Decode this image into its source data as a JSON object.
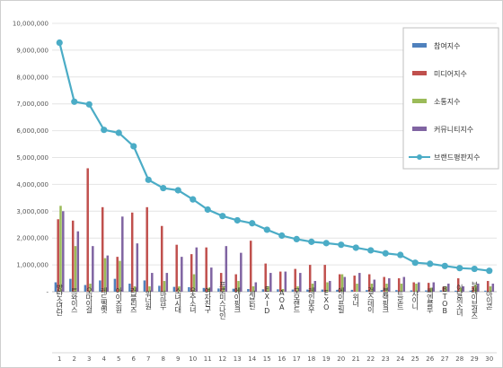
{
  "chart_data": {
    "type": "bar",
    "title": "",
    "xlabel": "",
    "ylabel": "",
    "ylim": [
      0,
      10000000
    ],
    "grid": true,
    "legend_position": "top-right",
    "y_ticks": [
      "-",
      "1,000,000",
      "2,000,000",
      "3,000,000",
      "4,000,000",
      "5,000,000",
      "6,000,000",
      "7,000,000",
      "8,000,000",
      "9,000,000",
      "10,000,000"
    ],
    "categories": [
      "방탄소년단",
      "트와이스",
      "오마이걸",
      "레드벨벳",
      "아이즈원",
      "러블리즈",
      "워너원",
      "마마무",
      "소녀시대",
      "우주소녀",
      "여자친구",
      "프로미스나인",
      "에이핑크",
      "세븐틴",
      "EXID",
      "AOA",
      "모모랜드",
      "레인보우",
      "EXO",
      "에이프릴",
      "위너",
      "걸스데이",
      "블랙핑크",
      "트로트",
      "샤이니",
      "씨엔블루",
      "BTOB",
      "이달의소녀",
      "브레이브걸스",
      "아이콘"
    ],
    "ranks": [
      "1",
      "2",
      "3",
      "4",
      "5",
      "6",
      "7",
      "8",
      "9",
      "10",
      "11",
      "12",
      "13",
      "14",
      "15",
      "16",
      "17",
      "18",
      "19",
      "20",
      "21",
      "22",
      "23",
      "24",
      "25",
      "26",
      "27",
      "28",
      "29",
      "30"
    ],
    "series": [
      {
        "name": "참여지수",
        "color": "#4f81bd",
        "type": "bar",
        "values": [
          350000,
          480000,
          250000,
          420000,
          480000,
          300000,
          420000,
          220000,
          180000,
          170000,
          140000,
          120000,
          110000,
          100000,
          90000,
          90000,
          80000,
          80000,
          80000,
          70000,
          70000,
          60000,
          60000,
          60000,
          50000,
          50000,
          50000,
          40000,
          40000,
          40000
        ]
      },
      {
        "name": "미디어지수",
        "color": "#c0504d",
        "type": "bar",
        "values": [
          2700000,
          2650000,
          4600000,
          3150000,
          1300000,
          2950000,
          3150000,
          2450000,
          1750000,
          1400000,
          1650000,
          700000,
          650000,
          1900000,
          1050000,
          750000,
          850000,
          1000000,
          1000000,
          650000,
          600000,
          650000,
          550000,
          500000,
          350000,
          330000,
          180000,
          500000,
          200000,
          400000
        ]
      },
      {
        "name": "소통지수",
        "color": "#9bbb59",
        "type": "bar",
        "values": [
          3200000,
          1700000,
          300000,
          1250000,
          1150000,
          200000,
          200000,
          400000,
          200000,
          650000,
          150000,
          200000,
          400000,
          200000,
          200000,
          100000,
          200000,
          300000,
          350000,
          650000,
          300000,
          300000,
          300000,
          300000,
          300000,
          150000,
          200000,
          150000,
          250000,
          200000
        ]
      },
      {
        "name": "커뮤니티지수",
        "color": "#8064a2",
        "type": "bar",
        "values": [
          3000000,
          2250000,
          1700000,
          1350000,
          2800000,
          1800000,
          700000,
          700000,
          1300000,
          1650000,
          900000,
          1700000,
          1450000,
          350000,
          700000,
          750000,
          700000,
          400000,
          400000,
          550000,
          700000,
          450000,
          500000,
          550000,
          350000,
          350000,
          300000,
          200000,
          300000,
          300000
        ]
      },
      {
        "name": "브랜드평판지수",
        "color": "#4bacc6",
        "type": "line",
        "values": [
          9280000,
          7080000,
          6980000,
          6030000,
          5920000,
          5420000,
          4170000,
          3860000,
          3780000,
          3440000,
          3060000,
          2820000,
          2660000,
          2550000,
          2310000,
          2090000,
          1960000,
          1860000,
          1810000,
          1750000,
          1640000,
          1540000,
          1430000,
          1370000,
          1080000,
          1040000,
          960000,
          880000,
          850000,
          780000
        ]
      }
    ]
  }
}
